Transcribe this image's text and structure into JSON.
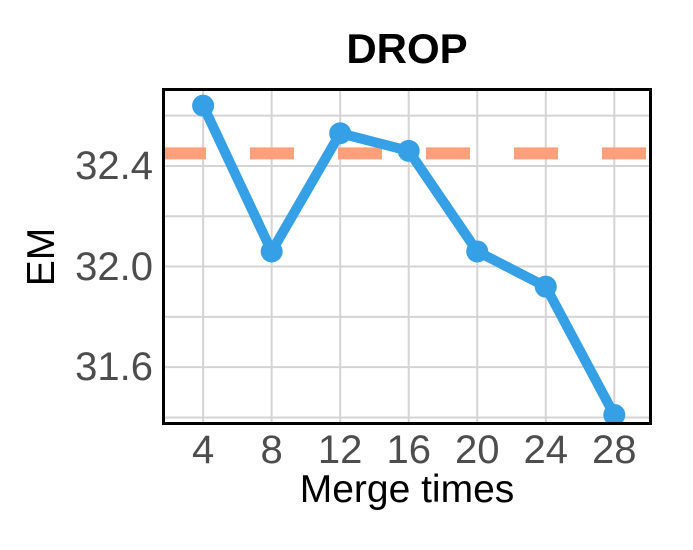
{
  "chart_data": {
    "type": "line",
    "title": "DROP",
    "xlabel": "Merge times",
    "ylabel": "EM",
    "x": [
      4,
      8,
      12,
      16,
      20,
      24,
      28
    ],
    "series": [
      {
        "name": "EM",
        "values": [
          32.64,
          32.06,
          32.53,
          32.46,
          32.06,
          31.92,
          31.41
        ]
      }
    ],
    "baseline": {
      "value": 32.45,
      "style": "dashed"
    },
    "x_ticks": [
      4,
      8,
      12,
      16,
      20,
      24,
      28
    ],
    "y_ticks": [
      32.4,
      32.0,
      31.6
    ],
    "y_gridlines": [
      32.6,
      32.4,
      32.2,
      32.0,
      31.8,
      31.6,
      31.4
    ],
    "xlim": [
      1.6,
      30.2
    ],
    "ylim": [
      31.37,
      32.71
    ],
    "grid": true,
    "legend": false,
    "colors": {
      "line": "#35A0E5",
      "baseline": "#FFA07A",
      "grid": "#D4D4D4",
      "panel_border": "#000000",
      "tick_label": "#4D4D4D",
      "text": "#000000",
      "background": "#FFFFFF"
    }
  }
}
